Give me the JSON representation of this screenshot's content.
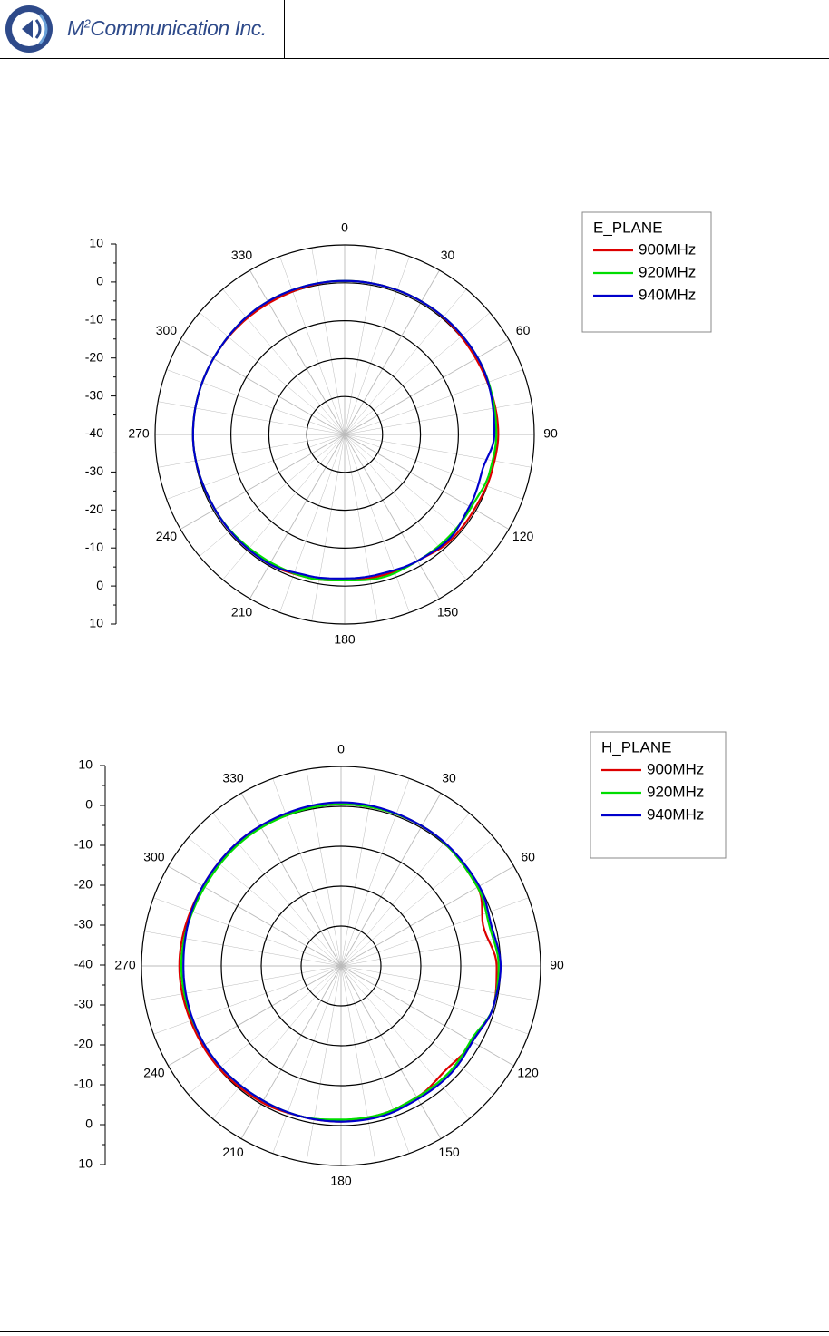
{
  "header": {
    "company_name_prefix": "M",
    "company_name_sup": "2",
    "company_name_rest": "Communication Inc."
  },
  "colors": {
    "logo_blue": "#2e4a8a",
    "series_900": "#dd0000",
    "series_920": "#00dd00",
    "series_940": "#0000cc"
  },
  "chart_data": [
    {
      "type": "polar-line",
      "legend_title": "E_PLANE",
      "radial_ticks": [
        "10",
        "0",
        "-10",
        "-20",
        "-30",
        "-40",
        "-30",
        "-20",
        "-10",
        "0",
        "10"
      ],
      "rlim": [
        -40,
        10
      ],
      "angle_labels": [
        "0",
        "30",
        "60",
        "90",
        "120",
        "150",
        "180",
        "210",
        "240",
        "270",
        "300",
        "330"
      ],
      "legend_placement": "top-right",
      "series": [
        {
          "name": "900MHz",
          "angles": [
            0,
            30,
            60,
            90,
            105,
            120,
            135,
            150,
            165,
            180,
            195,
            210,
            240,
            270,
            300,
            330
          ],
          "values": [
            0.5,
            0.5,
            0,
            0.5,
            0,
            -0.5,
            -0.5,
            -1.5,
            -1.5,
            -1.5,
            -1,
            -0.5,
            -0.5,
            0,
            0,
            0
          ]
        },
        {
          "name": "920MHz",
          "angles": [
            0,
            30,
            60,
            90,
            105,
            120,
            135,
            150,
            165,
            180,
            195,
            210,
            240,
            270,
            300,
            330
          ],
          "values": [
            0.5,
            0.5,
            0.5,
            0,
            -0.5,
            -1.5,
            -1.5,
            -1.5,
            -1,
            -1.5,
            -1,
            -1,
            -0.5,
            0,
            0,
            0.5
          ]
        },
        {
          "name": "940MHz",
          "angles": [
            0,
            30,
            60,
            90,
            105,
            120,
            135,
            150,
            165,
            180,
            195,
            210,
            240,
            270,
            300,
            330
          ],
          "values": [
            0.5,
            0.5,
            0.5,
            -0.5,
            -2.5,
            -2,
            -1,
            -1.5,
            -2,
            -2,
            -1.5,
            -0.5,
            -0.5,
            0,
            0,
            0.5
          ]
        }
      ]
    },
    {
      "type": "polar-line",
      "legend_title": "H_PLANE",
      "radial_ticks": [
        "10",
        "0",
        "-10",
        "-20",
        "-30",
        "-40",
        "-30",
        "-20",
        "-10",
        "0",
        "10"
      ],
      "rlim": [
        -40,
        10
      ],
      "angle_labels": [
        "0",
        "30",
        "60",
        "90",
        "120",
        "150",
        "180",
        "210",
        "240",
        "270",
        "300",
        "330"
      ],
      "legend_placement": "top-right",
      "series": [
        {
          "name": "900MHz",
          "angles": [
            0,
            30,
            60,
            75,
            90,
            105,
            120,
            135,
            150,
            165,
            180,
            195,
            210,
            240,
            270,
            300,
            330
          ],
          "values": [
            0.5,
            0.5,
            -0.5,
            -3,
            -1,
            -0.5,
            -2,
            -3,
            -2,
            -1.5,
            -1,
            -1,
            -0.5,
            0,
            0.5,
            0,
            0.5
          ]
        },
        {
          "name": "920MHz",
          "angles": [
            0,
            30,
            60,
            75,
            90,
            105,
            120,
            135,
            150,
            165,
            180,
            195,
            210,
            240,
            270,
            300,
            330
          ],
          "values": [
            0.5,
            0.5,
            -0.5,
            -1.5,
            -0.5,
            -0.5,
            -2.5,
            -2,
            -2,
            -1.5,
            -1.5,
            -1,
            -1,
            -0.5,
            0,
            -0.5,
            0
          ]
        },
        {
          "name": "940MHz",
          "angles": [
            0,
            30,
            60,
            75,
            90,
            105,
            120,
            135,
            150,
            165,
            180,
            195,
            210,
            240,
            270,
            300,
            330
          ],
          "values": [
            1,
            0.5,
            0,
            -1,
            0,
            -0.5,
            -2,
            -1.5,
            -1.5,
            -1,
            -1,
            -1,
            -1,
            -0.5,
            -0.5,
            0,
            0.5
          ]
        }
      ]
    }
  ]
}
